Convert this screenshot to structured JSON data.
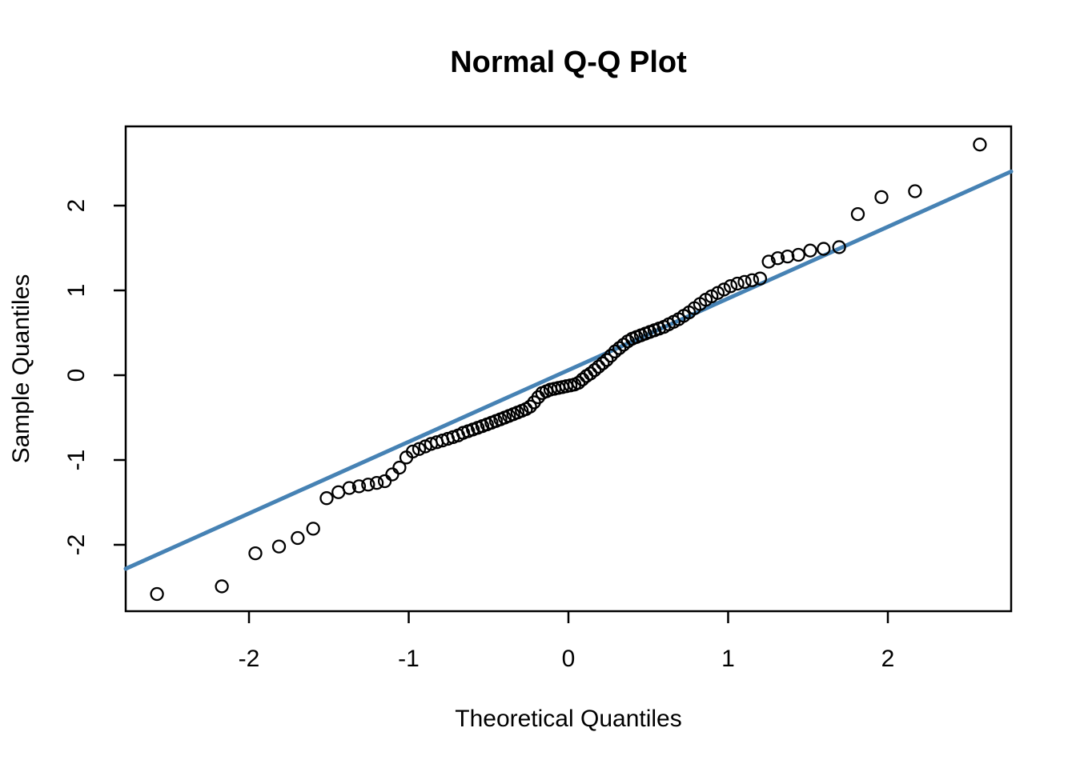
{
  "colors": {
    "background": "#ffffff",
    "axis": "#000000",
    "point_stroke": "#000000",
    "reference_line": "#4682B4"
  },
  "chart_data": {
    "type": "scatter",
    "title": "Normal Q-Q Plot",
    "xlabel": "Theoretical Quantiles",
    "ylabel": "Sample Quantiles",
    "xlim": [
      -2.772,
      2.772
    ],
    "ylim": [
      -2.783,
      2.934
    ],
    "x_ticks": [
      -2,
      -1,
      0,
      1,
      2
    ],
    "y_ticks": [
      -2,
      -1,
      0,
      1,
      2
    ],
    "grid": false,
    "legend": null,
    "marker": "open-circle",
    "reference_line": {
      "slope": 0.845,
      "intercept": 0.06,
      "color": "#4682B4",
      "description": "qqline through data quartiles"
    },
    "points": [
      [
        -2.576,
        -2.58
      ],
      [
        -2.17,
        -2.49
      ],
      [
        -1.96,
        -2.1
      ],
      [
        -1.812,
        -2.02
      ],
      [
        -1.695,
        -1.92
      ],
      [
        -1.598,
        -1.81
      ],
      [
        -1.514,
        -1.45
      ],
      [
        -1.44,
        -1.38
      ],
      [
        -1.372,
        -1.33
      ],
      [
        -1.311,
        -1.31
      ],
      [
        -1.254,
        -1.29
      ],
      [
        -1.2,
        -1.27
      ],
      [
        -1.15,
        -1.25
      ],
      [
        -1.103,
        -1.17
      ],
      [
        -1.058,
        -1.09
      ],
      [
        -1.015,
        -0.97
      ],
      [
        -0.974,
        -0.9
      ],
      [
        -0.935,
        -0.87
      ],
      [
        -0.896,
        -0.84
      ],
      [
        -0.86,
        -0.81
      ],
      [
        -0.824,
        -0.79
      ],
      [
        -0.789,
        -0.77
      ],
      [
        -0.755,
        -0.75
      ],
      [
        -0.722,
        -0.73
      ],
      [
        -0.69,
        -0.71
      ],
      [
        -0.659,
        -0.68
      ],
      [
        -0.628,
        -0.66
      ],
      [
        -0.598,
        -0.64
      ],
      [
        -0.568,
        -0.62
      ],
      [
        -0.539,
        -0.6
      ],
      [
        -0.51,
        -0.58
      ],
      [
        -0.482,
        -0.56
      ],
      [
        -0.454,
        -0.54
      ],
      [
        -0.426,
        -0.52
      ],
      [
        -0.399,
        -0.5
      ],
      [
        -0.372,
        -0.48
      ],
      [
        -0.345,
        -0.46
      ],
      [
        -0.319,
        -0.44
      ],
      [
        -0.292,
        -0.42
      ],
      [
        -0.266,
        -0.4
      ],
      [
        -0.24,
        -0.37
      ],
      [
        -0.215,
        -0.32
      ],
      [
        -0.189,
        -0.26
      ],
      [
        -0.164,
        -0.21
      ],
      [
        -0.138,
        -0.19
      ],
      [
        -0.113,
        -0.17
      ],
      [
        -0.088,
        -0.16
      ],
      [
        -0.063,
        -0.15
      ],
      [
        -0.038,
        -0.14
      ],
      [
        -0.013,
        -0.13
      ],
      [
        0.013,
        -0.12
      ],
      [
        0.038,
        -0.11
      ],
      [
        0.063,
        -0.09
      ],
      [
        0.088,
        -0.05
      ],
      [
        0.113,
        -0.01
      ],
      [
        0.138,
        0.02
      ],
      [
        0.164,
        0.06
      ],
      [
        0.189,
        0.1
      ],
      [
        0.215,
        0.14
      ],
      [
        0.24,
        0.18
      ],
      [
        0.266,
        0.23
      ],
      [
        0.292,
        0.28
      ],
      [
        0.319,
        0.32
      ],
      [
        0.345,
        0.36
      ],
      [
        0.372,
        0.4
      ],
      [
        0.399,
        0.43
      ],
      [
        0.426,
        0.45
      ],
      [
        0.454,
        0.47
      ],
      [
        0.482,
        0.49
      ],
      [
        0.51,
        0.51
      ],
      [
        0.539,
        0.53
      ],
      [
        0.568,
        0.55
      ],
      [
        0.598,
        0.57
      ],
      [
        0.628,
        0.6
      ],
      [
        0.659,
        0.63
      ],
      [
        0.69,
        0.66
      ],
      [
        0.722,
        0.7
      ],
      [
        0.755,
        0.74
      ],
      [
        0.789,
        0.79
      ],
      [
        0.824,
        0.84
      ],
      [
        0.86,
        0.89
      ],
      [
        0.896,
        0.93
      ],
      [
        0.935,
        0.97
      ],
      [
        0.974,
        1.01
      ],
      [
        1.015,
        1.05
      ],
      [
        1.058,
        1.08
      ],
      [
        1.103,
        1.1
      ],
      [
        1.15,
        1.12
      ],
      [
        1.2,
        1.14
      ],
      [
        1.254,
        1.34
      ],
      [
        1.311,
        1.38
      ],
      [
        1.372,
        1.4
      ],
      [
        1.44,
        1.42
      ],
      [
        1.514,
        1.47
      ],
      [
        1.598,
        1.49
      ],
      [
        1.695,
        1.51
      ],
      [
        1.812,
        1.9
      ],
      [
        1.96,
        2.1
      ],
      [
        2.17,
        2.17
      ],
      [
        2.576,
        2.72
      ]
    ]
  }
}
